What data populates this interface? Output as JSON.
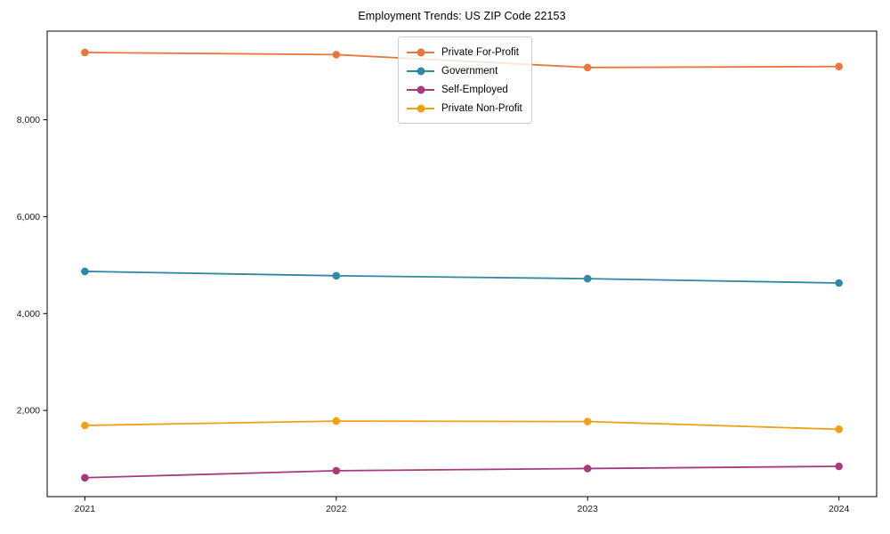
{
  "chart_data": {
    "type": "line",
    "title": "Employment Trends: US ZIP Code 22153",
    "xlabel": "",
    "ylabel": "",
    "x": [
      2021,
      2022,
      2023,
      2024
    ],
    "x_tick_labels": [
      "2021",
      "2022",
      "2023",
      "2024"
    ],
    "series": [
      {
        "name": "Private For-Profit",
        "color": "#e8773f",
        "values": [
          9390,
          9345,
          9080,
          9100
        ]
      },
      {
        "name": "Government",
        "color": "#3187a6",
        "values": [
          4870,
          4780,
          4720,
          4630
        ]
      },
      {
        "name": "Self-Employed",
        "color": "#a83a7c",
        "values": [
          610,
          755,
          800,
          845
        ]
      },
      {
        "name": "Private Non-Profit",
        "color": "#f0a014",
        "values": [
          1690,
          1780,
          1770,
          1610
        ]
      }
    ],
    "yticks": [
      {
        "value": 2000,
        "label": "2,000"
      },
      {
        "value": 4000,
        "label": "4,000"
      },
      {
        "value": 6000,
        "label": "6,000"
      },
      {
        "value": 8000,
        "label": "8,000"
      }
    ],
    "ylim": [
      220,
      9830
    ],
    "xlim_index": [
      -0.15,
      3.15
    ],
    "grid": false,
    "legend_position": "top-center",
    "marker": "circle",
    "axis_color": "#000000",
    "tick_label_color": "#1a1a1a"
  }
}
